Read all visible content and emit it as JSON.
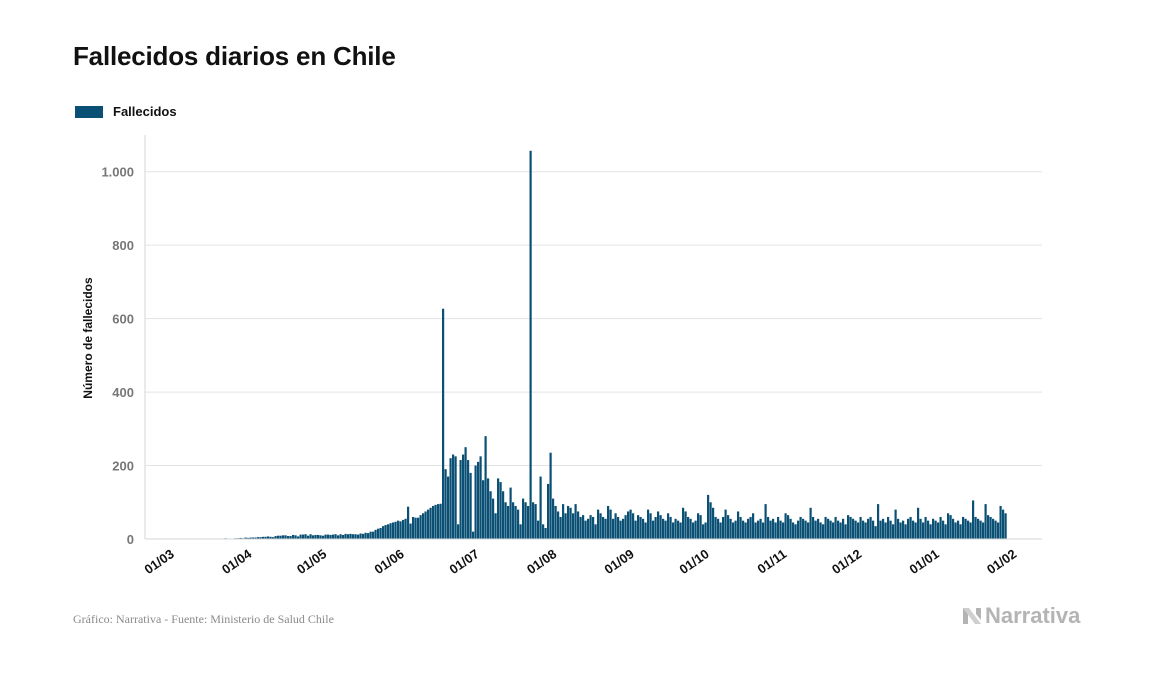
{
  "title": "Fallecidos diarios en Chile",
  "legend": {
    "label": "Fallecidos",
    "color": "#0a4f74"
  },
  "source": "Gráfico: Narrativa - Fuente: Ministerio de Salud Chile",
  "brand": "Narrativa",
  "chart_data": {
    "type": "bar",
    "title": "Fallecidos diarios en Chile",
    "xlabel": "",
    "ylabel": "Número de fallecidos",
    "ylim": [
      0,
      1100
    ],
    "yticks": [
      0,
      200,
      400,
      600,
      800,
      1000
    ],
    "ytick_labels": [
      "0",
      "200",
      "400",
      "600",
      "800",
      "1.000"
    ],
    "grid": true,
    "bar_color": "#0a4f74",
    "xticks": [
      "01/03",
      "01/04",
      "01/05",
      "01/06",
      "01/07",
      "01/08",
      "01/09",
      "01/10",
      "01/11",
      "01/12",
      "01/01",
      "01/02"
    ],
    "start_date": "01/03",
    "note": "one bar per day starting 01/03; values estimated from the chart",
    "series": [
      {
        "name": "Fallecidos",
        "values": [
          0,
          0,
          0,
          0,
          0,
          0,
          0,
          0,
          0,
          0,
          0,
          0,
          0,
          0,
          0,
          0,
          0,
          0,
          1,
          0,
          0,
          1,
          0,
          0,
          1,
          1,
          1,
          2,
          1,
          1,
          0,
          2,
          2,
          3,
          2,
          4,
          3,
          4,
          4,
          4,
          5,
          5,
          6,
          6,
          7,
          6,
          5,
          8,
          9,
          9,
          10,
          10,
          8,
          8,
          11,
          10,
          7,
          12,
          12,
          13,
          9,
          13,
          10,
          11,
          11,
          10,
          9,
          12,
          12,
          11,
          12,
          13,
          10,
          13,
          11,
          14,
          13,
          14,
          13,
          13,
          12,
          15,
          14,
          17,
          16,
          20,
          20,
          25,
          28,
          30,
          35,
          38,
          40,
          43,
          45,
          47,
          50,
          48,
          52,
          55,
          88,
          42,
          60,
          58,
          58,
          65,
          70,
          75,
          80,
          85,
          90,
          93,
          95,
          96,
          627,
          190,
          170,
          220,
          230,
          225,
          40,
          215,
          230,
          250,
          215,
          180,
          20,
          200,
          210,
          225,
          160,
          280,
          165,
          130,
          110,
          70,
          165,
          155,
          130,
          100,
          90,
          140,
          100,
          90,
          80,
          40,
          110,
          100,
          90,
          1057,
          100,
          95,
          50,
          170,
          40,
          30,
          150,
          235,
          110,
          90,
          75,
          60,
          95,
          70,
          90,
          85,
          70,
          95,
          75,
          60,
          65,
          50,
          55,
          65,
          60,
          40,
          80,
          70,
          60,
          55,
          90,
          80,
          55,
          70,
          60,
          50,
          55,
          65,
          75,
          80,
          70,
          50,
          65,
          60,
          55,
          45,
          80,
          70,
          50,
          60,
          75,
          65,
          55,
          50,
          70,
          60,
          45,
          55,
          50,
          45,
          85,
          75,
          60,
          55,
          45,
          50,
          70,
          65,
          40,
          45,
          120,
          100,
          85,
          60,
          55,
          45,
          60,
          80,
          65,
          55,
          45,
          50,
          75,
          60,
          50,
          45,
          55,
          60,
          70,
          45,
          50,
          55,
          45,
          95,
          60,
          50,
          55,
          45,
          60,
          50,
          45,
          70,
          65,
          55,
          45,
          40,
          50,
          60,
          55,
          50,
          45,
          85,
          60,
          50,
          55,
          45,
          40,
          60,
          55,
          50,
          45,
          60,
          50,
          45,
          55,
          40,
          65,
          60,
          55,
          50,
          45,
          60,
          50,
          45,
          55,
          60,
          50,
          35,
          95,
          50,
          55,
          45,
          60,
          50,
          40,
          80,
          55,
          45,
          50,
          40,
          55,
          60,
          50,
          45,
          85,
          55,
          45,
          60,
          50,
          40,
          55,
          50,
          45,
          60,
          50,
          40,
          70,
          65,
          55,
          45,
          50,
          40,
          60,
          55,
          50,
          45,
          105,
          60,
          55,
          50,
          45,
          95,
          65,
          60,
          55,
          50,
          45,
          90,
          80,
          70
        ]
      }
    ]
  }
}
